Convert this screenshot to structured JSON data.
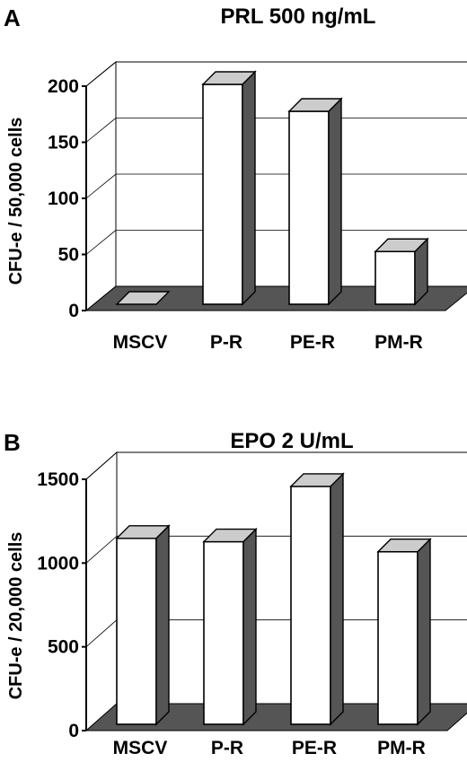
{
  "chart_data": [
    {
      "type": "bar",
      "panel": "A",
      "title": "PRL 500 ng/mL",
      "ylabel": "CFU-e / 50,000 cells",
      "xlabel": "",
      "categories": [
        "MSCV",
        "P-R",
        "PE-R",
        "PM-R"
      ],
      "values": [
        0,
        196,
        172,
        47
      ],
      "ylim": [
        0,
        200
      ],
      "yticks": [
        0,
        50,
        100,
        150,
        200
      ],
      "grid": true,
      "style": "3d",
      "bar_color": "#ffffff",
      "bar_top_color": "#cccccc",
      "bar_side_color": "#555555",
      "floor_color": "#555555"
    },
    {
      "type": "bar",
      "panel": "B",
      "title": "EPO 2 U/mL",
      "ylabel": "CFU-e / 20,000 cells",
      "xlabel": "",
      "categories": [
        "MSCV",
        "P-R",
        "PE-R",
        "PM-R"
      ],
      "values": [
        1110,
        1090,
        1420,
        1030
      ],
      "ylim": [
        0,
        1500
      ],
      "yticks": [
        0,
        500,
        1000,
        1500
      ],
      "grid": true,
      "style": "3d",
      "bar_color": "#ffffff",
      "bar_top_color": "#cccccc",
      "bar_side_color": "#555555",
      "floor_color": "#555555"
    }
  ]
}
